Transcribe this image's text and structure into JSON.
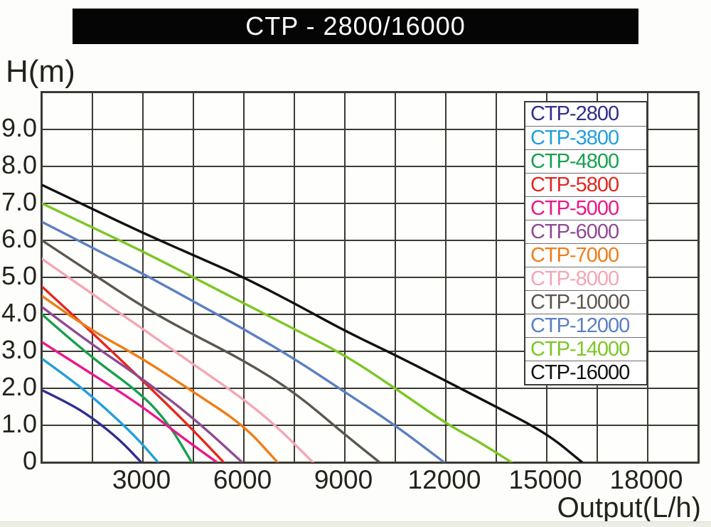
{
  "title": "CTP - 2800/16000",
  "chart_data": {
    "type": "line",
    "title": "CTP - 2800/16000",
    "xlabel": "Output(L/h)",
    "ylabel": "H(m)",
    "xlim": [
      0,
      19500
    ],
    "ylim": [
      0,
      10
    ],
    "x_grid_interval": 1500,
    "y_grid_interval": 1.0,
    "grid": true,
    "legend_position": "upper-right",
    "x_tick_values": [
      3000,
      6000,
      9000,
      12000,
      15000,
      18000
    ],
    "x_tick_labels": [
      "3000",
      "6000",
      "9000",
      "12000",
      "15000",
      "18000"
    ],
    "y_tick_values": [
      9,
      8,
      7,
      6,
      5,
      4,
      3,
      2,
      1,
      0
    ],
    "y_tick_labels": [
      "9.0",
      "8.0",
      "7.0",
      "6.0",
      "5.0",
      "4.0",
      "3.0",
      "2.0",
      "1.0",
      "0"
    ],
    "series": [
      {
        "name": "CTP-2800",
        "color": "#2e2f8f",
        "points": [
          [
            0,
            1.95
          ],
          [
            800,
            1.6
          ],
          [
            1500,
            1.2
          ],
          [
            2300,
            0.62
          ],
          [
            2950,
            0
          ]
        ]
      },
      {
        "name": "CTP-3800",
        "color": "#219fdd",
        "points": [
          [
            0,
            2.8
          ],
          [
            1000,
            2.15
          ],
          [
            1900,
            1.45
          ],
          [
            2800,
            0.68
          ],
          [
            3450,
            0
          ]
        ]
      },
      {
        "name": "CTP-4800",
        "color": "#17a04e",
        "points": [
          [
            0,
            4.0
          ],
          [
            1300,
            2.95
          ],
          [
            3000,
            1.82
          ],
          [
            3800,
            1.0
          ],
          [
            4450,
            0
          ]
        ]
      },
      {
        "name": "CTP-5800",
        "color": "#e3281e",
        "points": [
          [
            0,
            4.75
          ],
          [
            1500,
            3.5
          ],
          [
            3000,
            2.2
          ],
          [
            4300,
            1.05
          ],
          [
            5400,
            0
          ]
        ]
      },
      {
        "name": "CTP-5000",
        "color": "#ea1788",
        "points": [
          [
            0,
            3.25
          ],
          [
            1300,
            2.5
          ],
          [
            3000,
            1.5
          ],
          [
            4200,
            0.65
          ],
          [
            5200,
            0
          ]
        ]
      },
      {
        "name": "CTP-6000",
        "color": "#8f4a91",
        "points": [
          [
            0,
            4.2
          ],
          [
            1300,
            3.3
          ],
          [
            3000,
            2.25
          ],
          [
            4500,
            1.2
          ],
          [
            5950,
            0
          ]
        ]
      },
      {
        "name": "CTP-7000",
        "color": "#ef7d17",
        "points": [
          [
            0,
            4.5
          ],
          [
            1300,
            3.65
          ],
          [
            3000,
            2.8
          ],
          [
            4500,
            1.9
          ],
          [
            6000,
            1.0
          ],
          [
            7000,
            0
          ]
        ]
      },
      {
        "name": "CTP-8000",
        "color": "#f4a6b3",
        "points": [
          [
            0,
            5.5
          ],
          [
            1500,
            4.55
          ],
          [
            3000,
            3.6
          ],
          [
            4500,
            2.65
          ],
          [
            6000,
            1.7
          ],
          [
            7000,
            0.95
          ],
          [
            8050,
            0
          ]
        ]
      },
      {
        "name": "CTP-10000",
        "color": "#5d564d",
        "points": [
          [
            0,
            6.0
          ],
          [
            1500,
            5.1
          ],
          [
            3000,
            4.2
          ],
          [
            4500,
            3.45
          ],
          [
            6000,
            2.75
          ],
          [
            7500,
            1.9
          ],
          [
            9000,
            0.75
          ],
          [
            10030,
            0
          ]
        ]
      },
      {
        "name": "CTP-12000",
        "color": "#5b7fc2",
        "points": [
          [
            0,
            6.5
          ],
          [
            1500,
            5.8
          ],
          [
            3000,
            5.1
          ],
          [
            4500,
            4.35
          ],
          [
            6000,
            3.6
          ],
          [
            7500,
            2.8
          ],
          [
            9000,
            1.9
          ],
          [
            10500,
            1.0
          ],
          [
            11950,
            0
          ]
        ]
      },
      {
        "name": "CTP-14000",
        "color": "#7cc624",
        "points": [
          [
            0,
            7.0
          ],
          [
            1500,
            6.35
          ],
          [
            3000,
            5.7
          ],
          [
            4500,
            5.0
          ],
          [
            6000,
            4.3
          ],
          [
            7500,
            3.6
          ],
          [
            9000,
            2.9
          ],
          [
            10500,
            2.0
          ],
          [
            12000,
            1.05
          ],
          [
            13000,
            0.55
          ],
          [
            13950,
            0
          ]
        ]
      },
      {
        "name": "CTP-16000",
        "color": "#111111",
        "points": [
          [
            0,
            7.5
          ],
          [
            1500,
            6.85
          ],
          [
            3000,
            6.2
          ],
          [
            4500,
            5.6
          ],
          [
            6000,
            5.0
          ],
          [
            7500,
            4.3
          ],
          [
            9000,
            3.55
          ],
          [
            10500,
            2.9
          ],
          [
            12000,
            2.2
          ],
          [
            13500,
            1.5
          ],
          [
            15000,
            0.78
          ],
          [
            16050,
            0
          ]
        ]
      }
    ]
  }
}
